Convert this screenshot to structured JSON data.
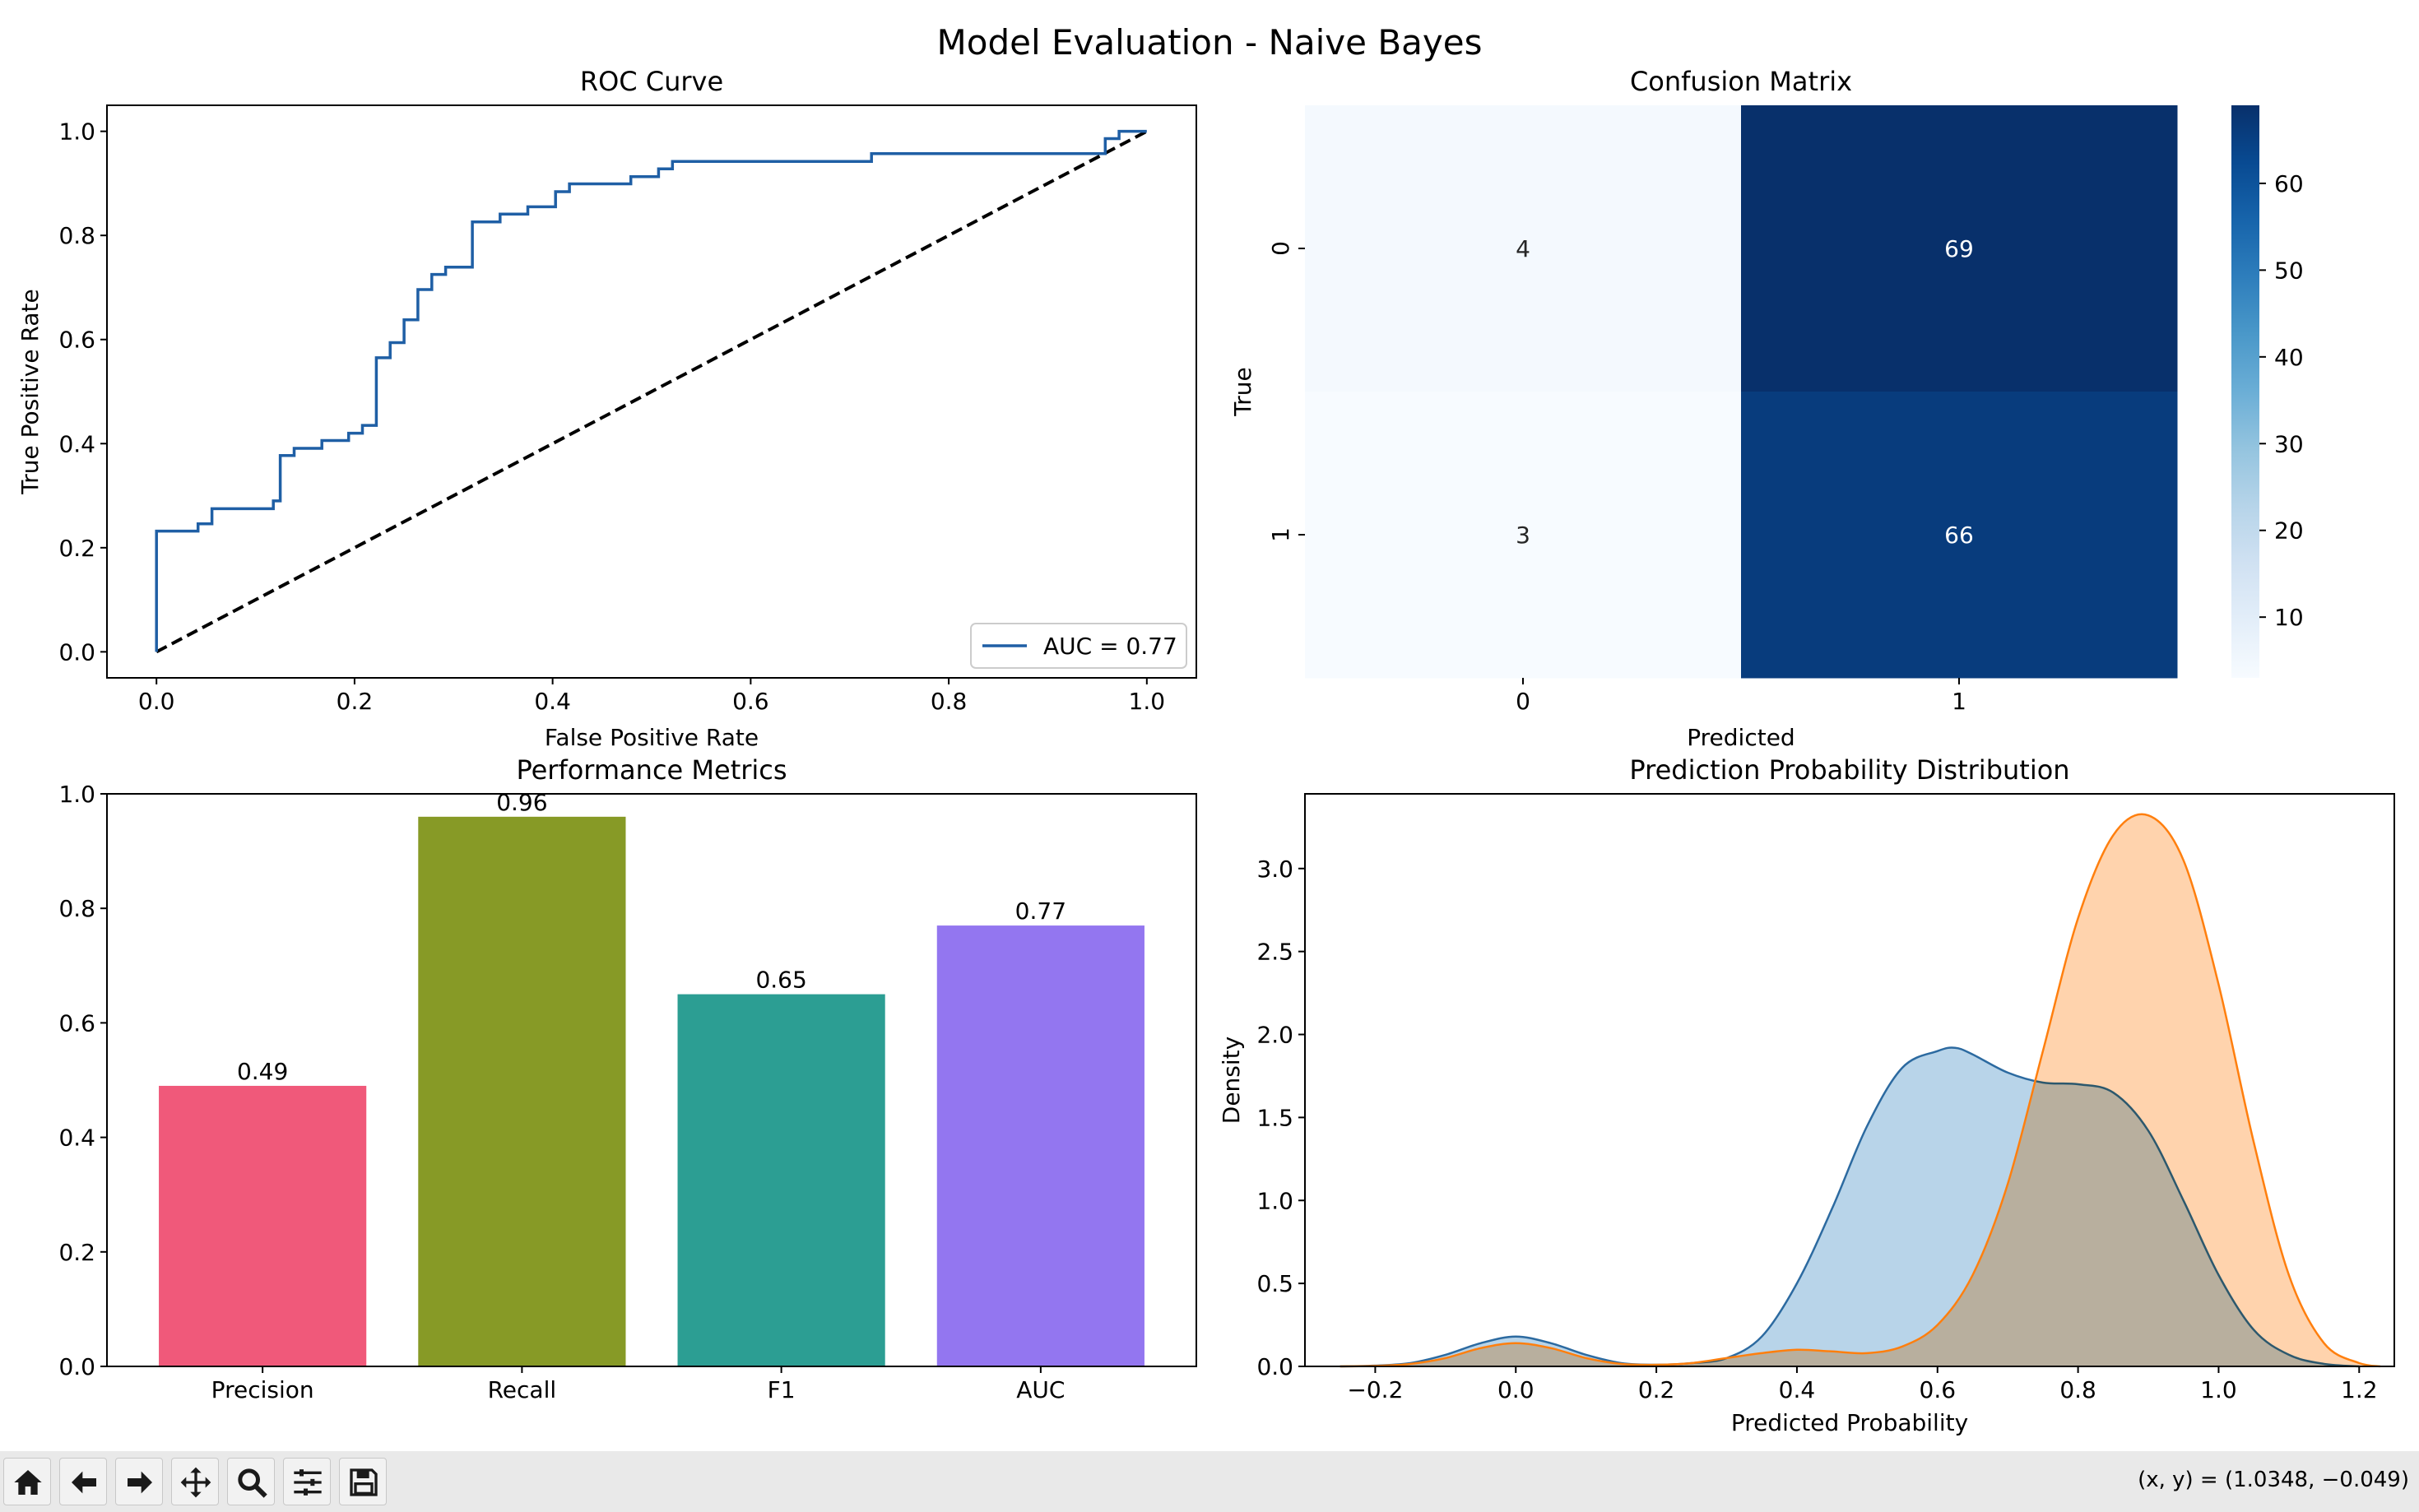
{
  "figure_title": "Model Evaluation - Naive Bayes",
  "colors": {
    "roc_line": "#1f5fa5",
    "cm_light": "#f7fbff",
    "cm_dark": "#08306b",
    "prob_class0": "#2c6aa0",
    "prob_class0_fill": "#a6c9e3",
    "prob_class1": "#ff7f0e",
    "prob_class1_fill": "#ffc899"
  },
  "chart_data": [
    {
      "type": "line",
      "title": "ROC Curve",
      "xlabel": "False Positive Rate",
      "ylabel": "True Positive Rate",
      "xlim": [
        -0.05,
        1.05
      ],
      "ylim": [
        -0.05,
        1.05
      ],
      "xticks": [
        "0.0",
        "0.2",
        "0.4",
        "0.6",
        "0.8",
        "1.0"
      ],
      "yticks": [
        "0.0",
        "0.2",
        "0.4",
        "0.6",
        "0.8",
        "1.0"
      ],
      "legend": "lower-right",
      "series": [
        {
          "name": "AUC = 0.77",
          "style": "step",
          "x": [
            0.0,
            0.0,
            0.042,
            0.042,
            0.056,
            0.056,
            0.118,
            0.118,
            0.125,
            0.125,
            0.139,
            0.139,
            0.167,
            0.167,
            0.194,
            0.194,
            0.208,
            0.208,
            0.222,
            0.222,
            0.236,
            0.236,
            0.25,
            0.25,
            0.264,
            0.264,
            0.278,
            0.278,
            0.292,
            0.292,
            0.319,
            0.319,
            0.347,
            0.347,
            0.375,
            0.375,
            0.403,
            0.403,
            0.417,
            0.417,
            0.479,
            0.479,
            0.507,
            0.507,
            0.521,
            0.521,
            0.722,
            0.722,
            0.958,
            0.958,
            0.972,
            0.972,
            1.0
          ],
          "y": [
            0.0,
            0.232,
            0.232,
            0.246,
            0.246,
            0.275,
            0.275,
            0.29,
            0.29,
            0.377,
            0.377,
            0.391,
            0.391,
            0.406,
            0.406,
            0.42,
            0.42,
            0.435,
            0.435,
            0.565,
            0.565,
            0.594,
            0.594,
            0.638,
            0.638,
            0.696,
            0.696,
            0.725,
            0.725,
            0.739,
            0.739,
            0.826,
            0.826,
            0.841,
            0.841,
            0.855,
            0.855,
            0.884,
            0.884,
            0.899,
            0.899,
            0.913,
            0.913,
            0.928,
            0.928,
            0.942,
            0.942,
            0.957,
            0.957,
            0.986,
            0.986,
            1.0,
            1.0
          ]
        },
        {
          "style": "dashed",
          "x": [
            0,
            1
          ],
          "y": [
            0,
            1
          ]
        }
      ]
    },
    {
      "type": "heatmap",
      "title": "Confusion Matrix",
      "xlabel": "Predicted",
      "ylabel": "True",
      "x_categories": [
        "0",
        "1"
      ],
      "y_categories": [
        "0",
        "1"
      ],
      "values": [
        [
          4,
          69
        ],
        [
          3,
          66
        ]
      ],
      "colorbar": {
        "min": 3,
        "max": 69,
        "ticks": [
          "10",
          "20",
          "30",
          "40",
          "50",
          "60"
        ]
      }
    },
    {
      "type": "bar",
      "title": "Performance Metrics",
      "categories": [
        "Precision",
        "Recall",
        "F1",
        "AUC"
      ],
      "values": [
        0.49,
        0.96,
        0.65,
        0.77
      ],
      "value_labels": [
        "0.49",
        "0.96",
        "0.65",
        "0.77"
      ],
      "bar_colors": [
        "#f0597a",
        "#879a26",
        "#2c9e93",
        "#9376f0"
      ],
      "ylim": [
        0,
        1.0
      ],
      "yticks": [
        "0.0",
        "0.2",
        "0.4",
        "0.6",
        "0.8",
        "1.0"
      ]
    },
    {
      "type": "area",
      "title": "Prediction Probability Distribution",
      "xlabel": "Predicted Probability",
      "ylabel": "Density",
      "xlim": [
        -0.3,
        1.25
      ],
      "ylim": [
        0,
        3.45
      ],
      "xticks": [
        "−0.2",
        "0.0",
        "0.2",
        "0.4",
        "0.6",
        "0.8",
        "1.0",
        "1.2"
      ],
      "yticks": [
        "0.0",
        "0.5",
        "1.0",
        "1.5",
        "2.0",
        "2.5",
        "3.0"
      ],
      "series": [
        {
          "x": [
            -0.25,
            -0.2,
            -0.15,
            -0.1,
            -0.05,
            0.0,
            0.05,
            0.1,
            0.15,
            0.2,
            0.25,
            0.3,
            0.35,
            0.4,
            0.45,
            0.5,
            0.55,
            0.6,
            0.625,
            0.65,
            0.7,
            0.75,
            0.8,
            0.85,
            0.9,
            0.95,
            1.0,
            1.05,
            1.1,
            1.15,
            1.2
          ],
          "y": [
            0.0,
            0.005,
            0.02,
            0.07,
            0.14,
            0.18,
            0.14,
            0.07,
            0.02,
            0.01,
            0.02,
            0.05,
            0.18,
            0.5,
            0.95,
            1.45,
            1.8,
            1.9,
            1.92,
            1.88,
            1.77,
            1.71,
            1.7,
            1.65,
            1.42,
            1.0,
            0.55,
            0.22,
            0.07,
            0.015,
            0.0
          ]
        },
        {
          "x": [
            -0.25,
            -0.2,
            -0.15,
            -0.1,
            -0.05,
            0.0,
            0.05,
            0.1,
            0.15,
            0.2,
            0.25,
            0.3,
            0.35,
            0.4,
            0.45,
            0.5,
            0.55,
            0.6,
            0.65,
            0.7,
            0.75,
            0.8,
            0.85,
            0.9,
            0.95,
            1.0,
            1.05,
            1.1,
            1.15,
            1.2,
            1.23
          ],
          "y": [
            0.0,
            0.003,
            0.015,
            0.05,
            0.11,
            0.14,
            0.11,
            0.05,
            0.015,
            0.01,
            0.02,
            0.05,
            0.08,
            0.1,
            0.09,
            0.08,
            0.12,
            0.25,
            0.55,
            1.1,
            1.9,
            2.7,
            3.2,
            3.32,
            3.05,
            2.3,
            1.35,
            0.55,
            0.14,
            0.02,
            0.0
          ]
        }
      ]
    }
  ],
  "toolbar": {
    "buttons": [
      "home-icon",
      "back-icon",
      "forward-icon",
      "pan-icon",
      "zoom-icon",
      "configure-subplots-icon",
      "save-icon"
    ],
    "coords": "(x, y) = (1.0348, −0.049)"
  }
}
